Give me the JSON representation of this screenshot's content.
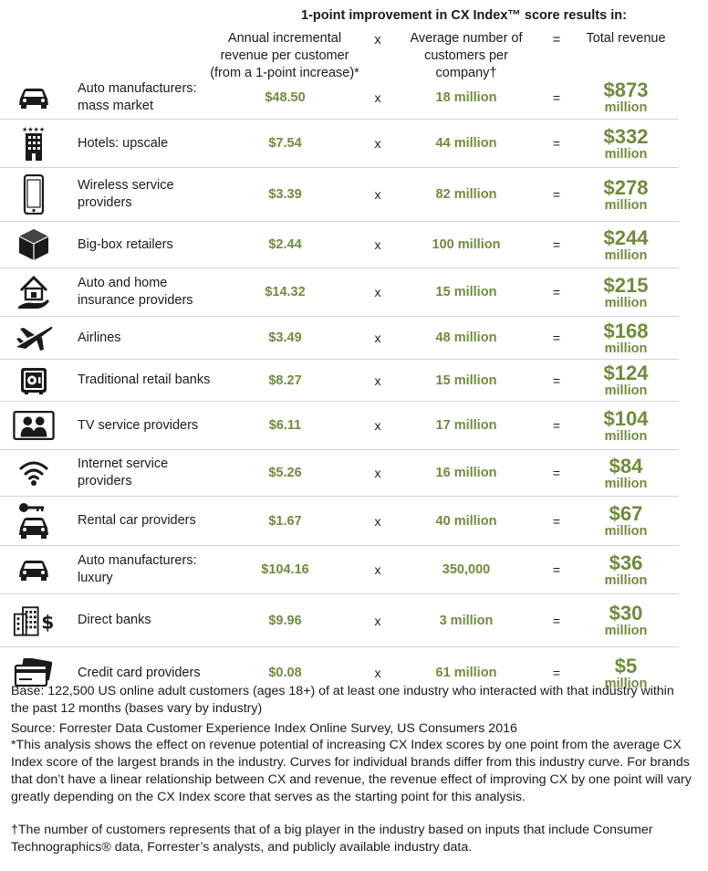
{
  "header": {
    "title": "1-point improvement in CX Index™ score results in:",
    "col_revenue": "Annual incremental\nrevenue per customer\n(from a 1-point increase)*",
    "col_times": "x",
    "col_customers": "Average number of\ncustomers per\ncompany†",
    "col_equals": "=",
    "col_total": "Total revenue"
  },
  "rows": [
    {
      "icon": "car-icon",
      "industry": "Auto manufacturers:\nmass market",
      "revenue": "$48.50",
      "times": "x",
      "customers": "18 million",
      "equals": "=",
      "total": "$873",
      "unit": "million"
    },
    {
      "icon": "hotel-icon",
      "industry": "Hotels: upscale",
      "revenue": "$7.54",
      "times": "x",
      "customers": "44 million",
      "equals": "=",
      "total": "$332",
      "unit": "million"
    },
    {
      "icon": "phone-icon",
      "industry": "Wireless service\nproviders",
      "revenue": "$3.39",
      "times": "x",
      "customers": "82 million",
      "equals": "=",
      "total": "$278",
      "unit": "million"
    },
    {
      "icon": "box-icon",
      "industry": "Big-box retailers",
      "revenue": "$2.44",
      "times": "x",
      "customers": "100 million",
      "equals": "=",
      "total": "$244",
      "unit": "million"
    },
    {
      "icon": "house-hand-icon",
      "industry": "Auto and home\ninsurance providers",
      "revenue": "$14.32",
      "times": "x",
      "customers": "15 million",
      "equals": "=",
      "total": "$215",
      "unit": "million"
    },
    {
      "icon": "airplane-icon",
      "industry": "Airlines",
      "revenue": "$3.49",
      "times": "x",
      "customers": "48 million",
      "equals": "=",
      "total": "$168",
      "unit": "million"
    },
    {
      "icon": "safe-icon",
      "industry": "Traditional retail banks",
      "revenue": "$8.27",
      "times": "x",
      "customers": "15 million",
      "equals": "=",
      "total": "$124",
      "unit": "million"
    },
    {
      "icon": "tv-people-icon",
      "industry": "TV service providers",
      "revenue": "$6.11",
      "times": "x",
      "customers": "17 million",
      "equals": "=",
      "total": "$104",
      "unit": "million"
    },
    {
      "icon": "wifi-icon",
      "industry": "Internet service\nproviders",
      "revenue": "$5.26",
      "times": "x",
      "customers": "16 million",
      "equals": "=",
      "total": "$84",
      "unit": "million"
    },
    {
      "icon": "car-key-icon",
      "industry": "Rental car providers",
      "revenue": "$1.67",
      "times": "x",
      "customers": "40 million",
      "equals": "=",
      "total": "$67",
      "unit": "million"
    },
    {
      "icon": "car-icon",
      "industry": "Auto manufacturers:\nluxury",
      "revenue": "$104.16",
      "times": "x",
      "customers": "350,000",
      "equals": "=",
      "total": "$36",
      "unit": "million"
    },
    {
      "icon": "bank-building-icon",
      "industry": "Direct banks",
      "revenue": "$9.96",
      "times": "x",
      "customers": "3 million",
      "equals": "=",
      "total": "$30",
      "unit": "million"
    },
    {
      "icon": "credit-card-icon",
      "industry": "Credit card providers",
      "revenue": "$0.08",
      "times": "x",
      "customers": "61 million",
      "equals": "=",
      "total": "$5",
      "unit": "million"
    }
  ],
  "footnotes": {
    "base": "Base: 122,500 US online adult customers (ages 18+) of at least one industry who interacted with that industry within the past 12 months (bases vary by industry)",
    "source": "Source: Forrester Data Customer Experience Index Online Survey, US Consumers 2016",
    "asterisk": "*This analysis shows the effect on revenue potential of increasing CX Index scores by one point from the average CX Index score of the largest brands in the industry. Curves for individual brands differ from this industry curve. For brands that don’t have a linear relationship between CX and revenue, the revenue effect of improving CX by one point will vary greatly depending on the CX Index score that serves as the starting point for this analysis.",
    "dagger": "†The number of customers represents that of a big player in the industry based on inputs that include Consumer Technographics® data, Forrester’s analysts, and publicly available industry data."
  },
  "colors": {
    "accent_green": "#6f8b3c",
    "text": "#1a1a1a",
    "rule": "#d4d4d4"
  }
}
